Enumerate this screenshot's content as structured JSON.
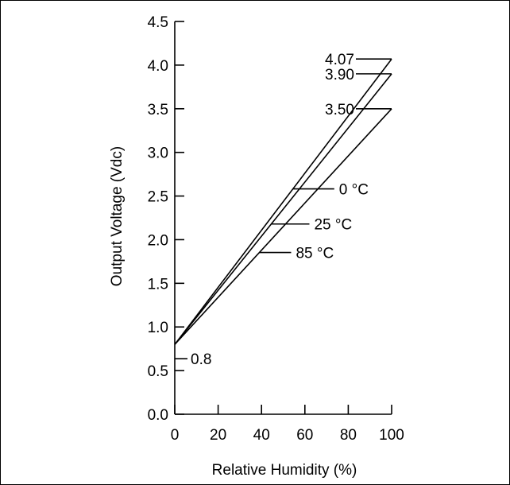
{
  "chart_data": {
    "type": "line",
    "xlabel": "Relative Humidity (%)",
    "ylabel": "Output Voltage (Vdc)",
    "xlim": [
      0,
      100
    ],
    "ylim": [
      0,
      4.5
    ],
    "xticks": [
      0,
      20,
      40,
      60,
      80,
      100
    ],
    "yticks": [
      0.0,
      0.5,
      1.0,
      1.5,
      2.0,
      2.5,
      3.0,
      3.5,
      4.0,
      4.5
    ],
    "ytick_labels": [
      "0.0",
      "0.5",
      "1.0",
      "1.5",
      "2.0",
      "2.5",
      "3.0",
      "3.5",
      "4.0",
      "4.5"
    ],
    "xtick_labels": [
      "0",
      "20",
      "40",
      "60",
      "80",
      "100"
    ],
    "grid": false,
    "series": [
      {
        "name": "0 °C",
        "x": [
          0,
          100
        ],
        "y": [
          0.8,
          4.07
        ]
      },
      {
        "name": "25 °C",
        "x": [
          0,
          100
        ],
        "y": [
          0.8,
          3.9
        ]
      },
      {
        "name": "85 °C",
        "x": [
          0,
          100
        ],
        "y": [
          0.8,
          3.5
        ]
      }
    ],
    "annotations": [
      {
        "text": "4.07",
        "x": 100,
        "y": 4.07
      },
      {
        "text": "3.90",
        "x": 100,
        "y": 3.9
      },
      {
        "text": "3.50",
        "x": 100,
        "y": 3.5
      },
      {
        "text": "0.8",
        "x": 0,
        "y": 0.8
      }
    ]
  }
}
